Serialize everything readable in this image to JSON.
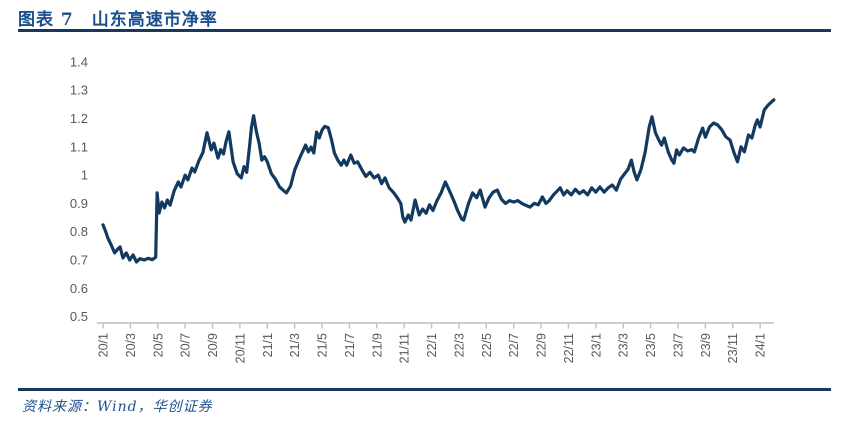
{
  "header": {
    "title": "图表 7　山东高速市净率"
  },
  "footer": {
    "source": "资料来源：Wind，华创证券"
  },
  "colors": {
    "title_blue": "#1C4E8E",
    "rule_navy": "#17375E",
    "line_navy": "#12395F",
    "axis_gray": "#BFBFBF",
    "label_gray": "#595959"
  },
  "chart_data": {
    "type": "line",
    "title": "山东高速市净率",
    "ylabel": "",
    "xlabel": "",
    "ylim": [
      0.5,
      1.4
    ],
    "xlim_months": [
      0,
      49.3
    ],
    "grid": false,
    "legend": "none",
    "y_tick_labels": [
      "0.5",
      "0.6",
      "0.7",
      "0.8",
      "0.9",
      "1",
      "1.1",
      "1.2",
      "1.3",
      "1.4"
    ],
    "y_tick_values": [
      0.5,
      0.6,
      0.7,
      0.8,
      0.9,
      1.0,
      1.1,
      1.2,
      1.3,
      1.4
    ],
    "x_tick_labels": [
      "20/1",
      "20/3",
      "20/5",
      "20/7",
      "20/9",
      "20/11",
      "21/1",
      "21/3",
      "21/5",
      "21/7",
      "21/9",
      "21/11",
      "22/1",
      "22/3",
      "22/5",
      "22/7",
      "22/9",
      "22/11",
      "23/1",
      "23/3",
      "23/5",
      "23/7",
      "23/9",
      "23/11",
      "24/1"
    ],
    "x_tick_months": [
      0,
      2,
      4,
      6,
      8,
      10,
      12,
      14,
      16,
      18,
      20,
      22,
      24,
      26,
      28,
      30,
      32,
      34,
      36,
      38,
      40,
      42,
      44,
      46,
      48
    ],
    "series": [
      {
        "name": "山东高速市净率",
        "points": [
          [
            0,
            0.824
          ],
          [
            0.15,
            0.806
          ],
          [
            0.35,
            0.778
          ],
          [
            0.6,
            0.753
          ],
          [
            0.85,
            0.725
          ],
          [
            1.1,
            0.74
          ],
          [
            1.25,
            0.746
          ],
          [
            1.45,
            0.707
          ],
          [
            1.7,
            0.725
          ],
          [
            1.95,
            0.7
          ],
          [
            2.2,
            0.718
          ],
          [
            2.45,
            0.693
          ],
          [
            2.7,
            0.705
          ],
          [
            3,
            0.7
          ],
          [
            3.3,
            0.706
          ],
          [
            3.6,
            0.701
          ],
          [
            3.85,
            0.71
          ],
          [
            3.95,
            0.937
          ],
          [
            4.1,
            0.866
          ],
          [
            4.3,
            0.905
          ],
          [
            4.5,
            0.884
          ],
          [
            4.7,
            0.912
          ],
          [
            4.9,
            0.894
          ],
          [
            5.2,
            0.945
          ],
          [
            5.5,
            0.976
          ],
          [
            5.7,
            0.958
          ],
          [
            6,
            1.0
          ],
          [
            6.2,
            0.983
          ],
          [
            6.5,
            1.025
          ],
          [
            6.7,
            1.011
          ],
          [
            7,
            1.05
          ],
          [
            7.3,
            1.08
          ],
          [
            7.6,
            1.15
          ],
          [
            7.9,
            1.089
          ],
          [
            8.1,
            1.113
          ],
          [
            8.4,
            1.06
          ],
          [
            8.6,
            1.09
          ],
          [
            8.8,
            1.075
          ],
          [
            9,
            1.12
          ],
          [
            9.2,
            1.153
          ],
          [
            9.5,
            1.047
          ],
          [
            9.8,
            1.005
          ],
          [
            10.1,
            0.99
          ],
          [
            10.3,
            1.03
          ],
          [
            10.5,
            1.01
          ],
          [
            10.7,
            1.1
          ],
          [
            10.85,
            1.17
          ],
          [
            11,
            1.21
          ],
          [
            11.2,
            1.155
          ],
          [
            11.4,
            1.113
          ],
          [
            11.6,
            1.053
          ],
          [
            11.8,
            1.065
          ],
          [
            12,
            1.047
          ],
          [
            12.3,
            1.005
          ],
          [
            12.6,
            0.985
          ],
          [
            12.9,
            0.958
          ],
          [
            13.2,
            0.945
          ],
          [
            13.4,
            0.937
          ],
          [
            13.7,
            0.962
          ],
          [
            14,
            1.018
          ],
          [
            14.4,
            1.064
          ],
          [
            14.8,
            1.106
          ],
          [
            15,
            1.082
          ],
          [
            15.2,
            1.099
          ],
          [
            15.4,
            1.078
          ],
          [
            15.6,
            1.152
          ],
          [
            15.8,
            1.131
          ],
          [
            16,
            1.159
          ],
          [
            16.2,
            1.172
          ],
          [
            16.45,
            1.168
          ],
          [
            16.7,
            1.124
          ],
          [
            16.9,
            1.078
          ],
          [
            17.15,
            1.053
          ],
          [
            17.4,
            1.035
          ],
          [
            17.6,
            1.053
          ],
          [
            17.8,
            1.035
          ],
          [
            18.1,
            1.071
          ],
          [
            18.35,
            1.042
          ],
          [
            18.6,
            1.047
          ],
          [
            18.9,
            1.02
          ],
          [
            19.2,
            0.995
          ],
          [
            19.5,
            1.01
          ],
          [
            19.8,
            0.99
          ],
          [
            20.1,
            1.0
          ],
          [
            20.35,
            0.97
          ],
          [
            20.6,
            0.99
          ],
          [
            20.9,
            0.955
          ],
          [
            21.2,
            0.94
          ],
          [
            21.5,
            0.92
          ],
          [
            21.75,
            0.9
          ],
          [
            21.9,
            0.852
          ],
          [
            22.05,
            0.834
          ],
          [
            22.3,
            0.859
          ],
          [
            22.5,
            0.841
          ],
          [
            22.8,
            0.912
          ],
          [
            23.1,
            0.859
          ],
          [
            23.35,
            0.88
          ],
          [
            23.6,
            0.865
          ],
          [
            23.85,
            0.895
          ],
          [
            24.1,
            0.875
          ],
          [
            24.4,
            0.91
          ],
          [
            24.7,
            0.937
          ],
          [
            25,
            0.976
          ],
          [
            25.3,
            0.945
          ],
          [
            25.6,
            0.912
          ],
          [
            25.9,
            0.875
          ],
          [
            26.2,
            0.845
          ],
          [
            26.35,
            0.841
          ],
          [
            26.7,
            0.9
          ],
          [
            27,
            0.937
          ],
          [
            27.3,
            0.92
          ],
          [
            27.55,
            0.947
          ],
          [
            27.9,
            0.887
          ],
          [
            28.2,
            0.92
          ],
          [
            28.5,
            0.94
          ],
          [
            28.8,
            0.947
          ],
          [
            29.1,
            0.915
          ],
          [
            29.4,
            0.9
          ],
          [
            29.7,
            0.91
          ],
          [
            30,
            0.905
          ],
          [
            30.3,
            0.91
          ],
          [
            30.6,
            0.9
          ],
          [
            30.9,
            0.893
          ],
          [
            31.2,
            0.887
          ],
          [
            31.5,
            0.9
          ],
          [
            31.8,
            0.895
          ],
          [
            32.1,
            0.923
          ],
          [
            32.35,
            0.9
          ],
          [
            32.6,
            0.91
          ],
          [
            32.9,
            0.93
          ],
          [
            33.2,
            0.945
          ],
          [
            33.4,
            0.955
          ],
          [
            33.65,
            0.93
          ],
          [
            33.9,
            0.945
          ],
          [
            34.2,
            0.93
          ],
          [
            34.5,
            0.95
          ],
          [
            34.8,
            0.935
          ],
          [
            35.1,
            0.945
          ],
          [
            35.4,
            0.93
          ],
          [
            35.7,
            0.955
          ],
          [
            36,
            0.94
          ],
          [
            36.3,
            0.958
          ],
          [
            36.6,
            0.94
          ],
          [
            36.9,
            0.955
          ],
          [
            37.2,
            0.965
          ],
          [
            37.5,
            0.947
          ],
          [
            37.8,
            0.985
          ],
          [
            38.1,
            1.005
          ],
          [
            38.35,
            1.02
          ],
          [
            38.6,
            1.053
          ],
          [
            38.8,
            1.01
          ],
          [
            39,
            0.983
          ],
          [
            39.3,
            1.02
          ],
          [
            39.6,
            1.08
          ],
          [
            39.9,
            1.17
          ],
          [
            40.1,
            1.206
          ],
          [
            40.35,
            1.15
          ],
          [
            40.6,
            1.124
          ],
          [
            40.8,
            1.106
          ],
          [
            41,
            1.131
          ],
          [
            41.3,
            1.08
          ],
          [
            41.55,
            1.053
          ],
          [
            41.7,
            1.042
          ],
          [
            41.9,
            1.089
          ],
          [
            42.1,
            1.071
          ],
          [
            42.4,
            1.096
          ],
          [
            42.7,
            1.085
          ],
          [
            43,
            1.09
          ],
          [
            43.2,
            1.082
          ],
          [
            43.5,
            1.13
          ],
          [
            43.8,
            1.166
          ],
          [
            44,
            1.134
          ],
          [
            44.3,
            1.17
          ],
          [
            44.6,
            1.184
          ],
          [
            44.9,
            1.177
          ],
          [
            45.2,
            1.16
          ],
          [
            45.5,
            1.135
          ],
          [
            45.8,
            1.124
          ],
          [
            46.1,
            1.078
          ],
          [
            46.35,
            1.047
          ],
          [
            46.6,
            1.1
          ],
          [
            46.85,
            1.082
          ],
          [
            47.15,
            1.142
          ],
          [
            47.4,
            1.131
          ],
          [
            47.65,
            1.177
          ],
          [
            47.8,
            1.195
          ],
          [
            48,
            1.17
          ],
          [
            48.3,
            1.23
          ],
          [
            48.6,
            1.248
          ],
          [
            49,
            1.266
          ]
        ]
      }
    ]
  }
}
